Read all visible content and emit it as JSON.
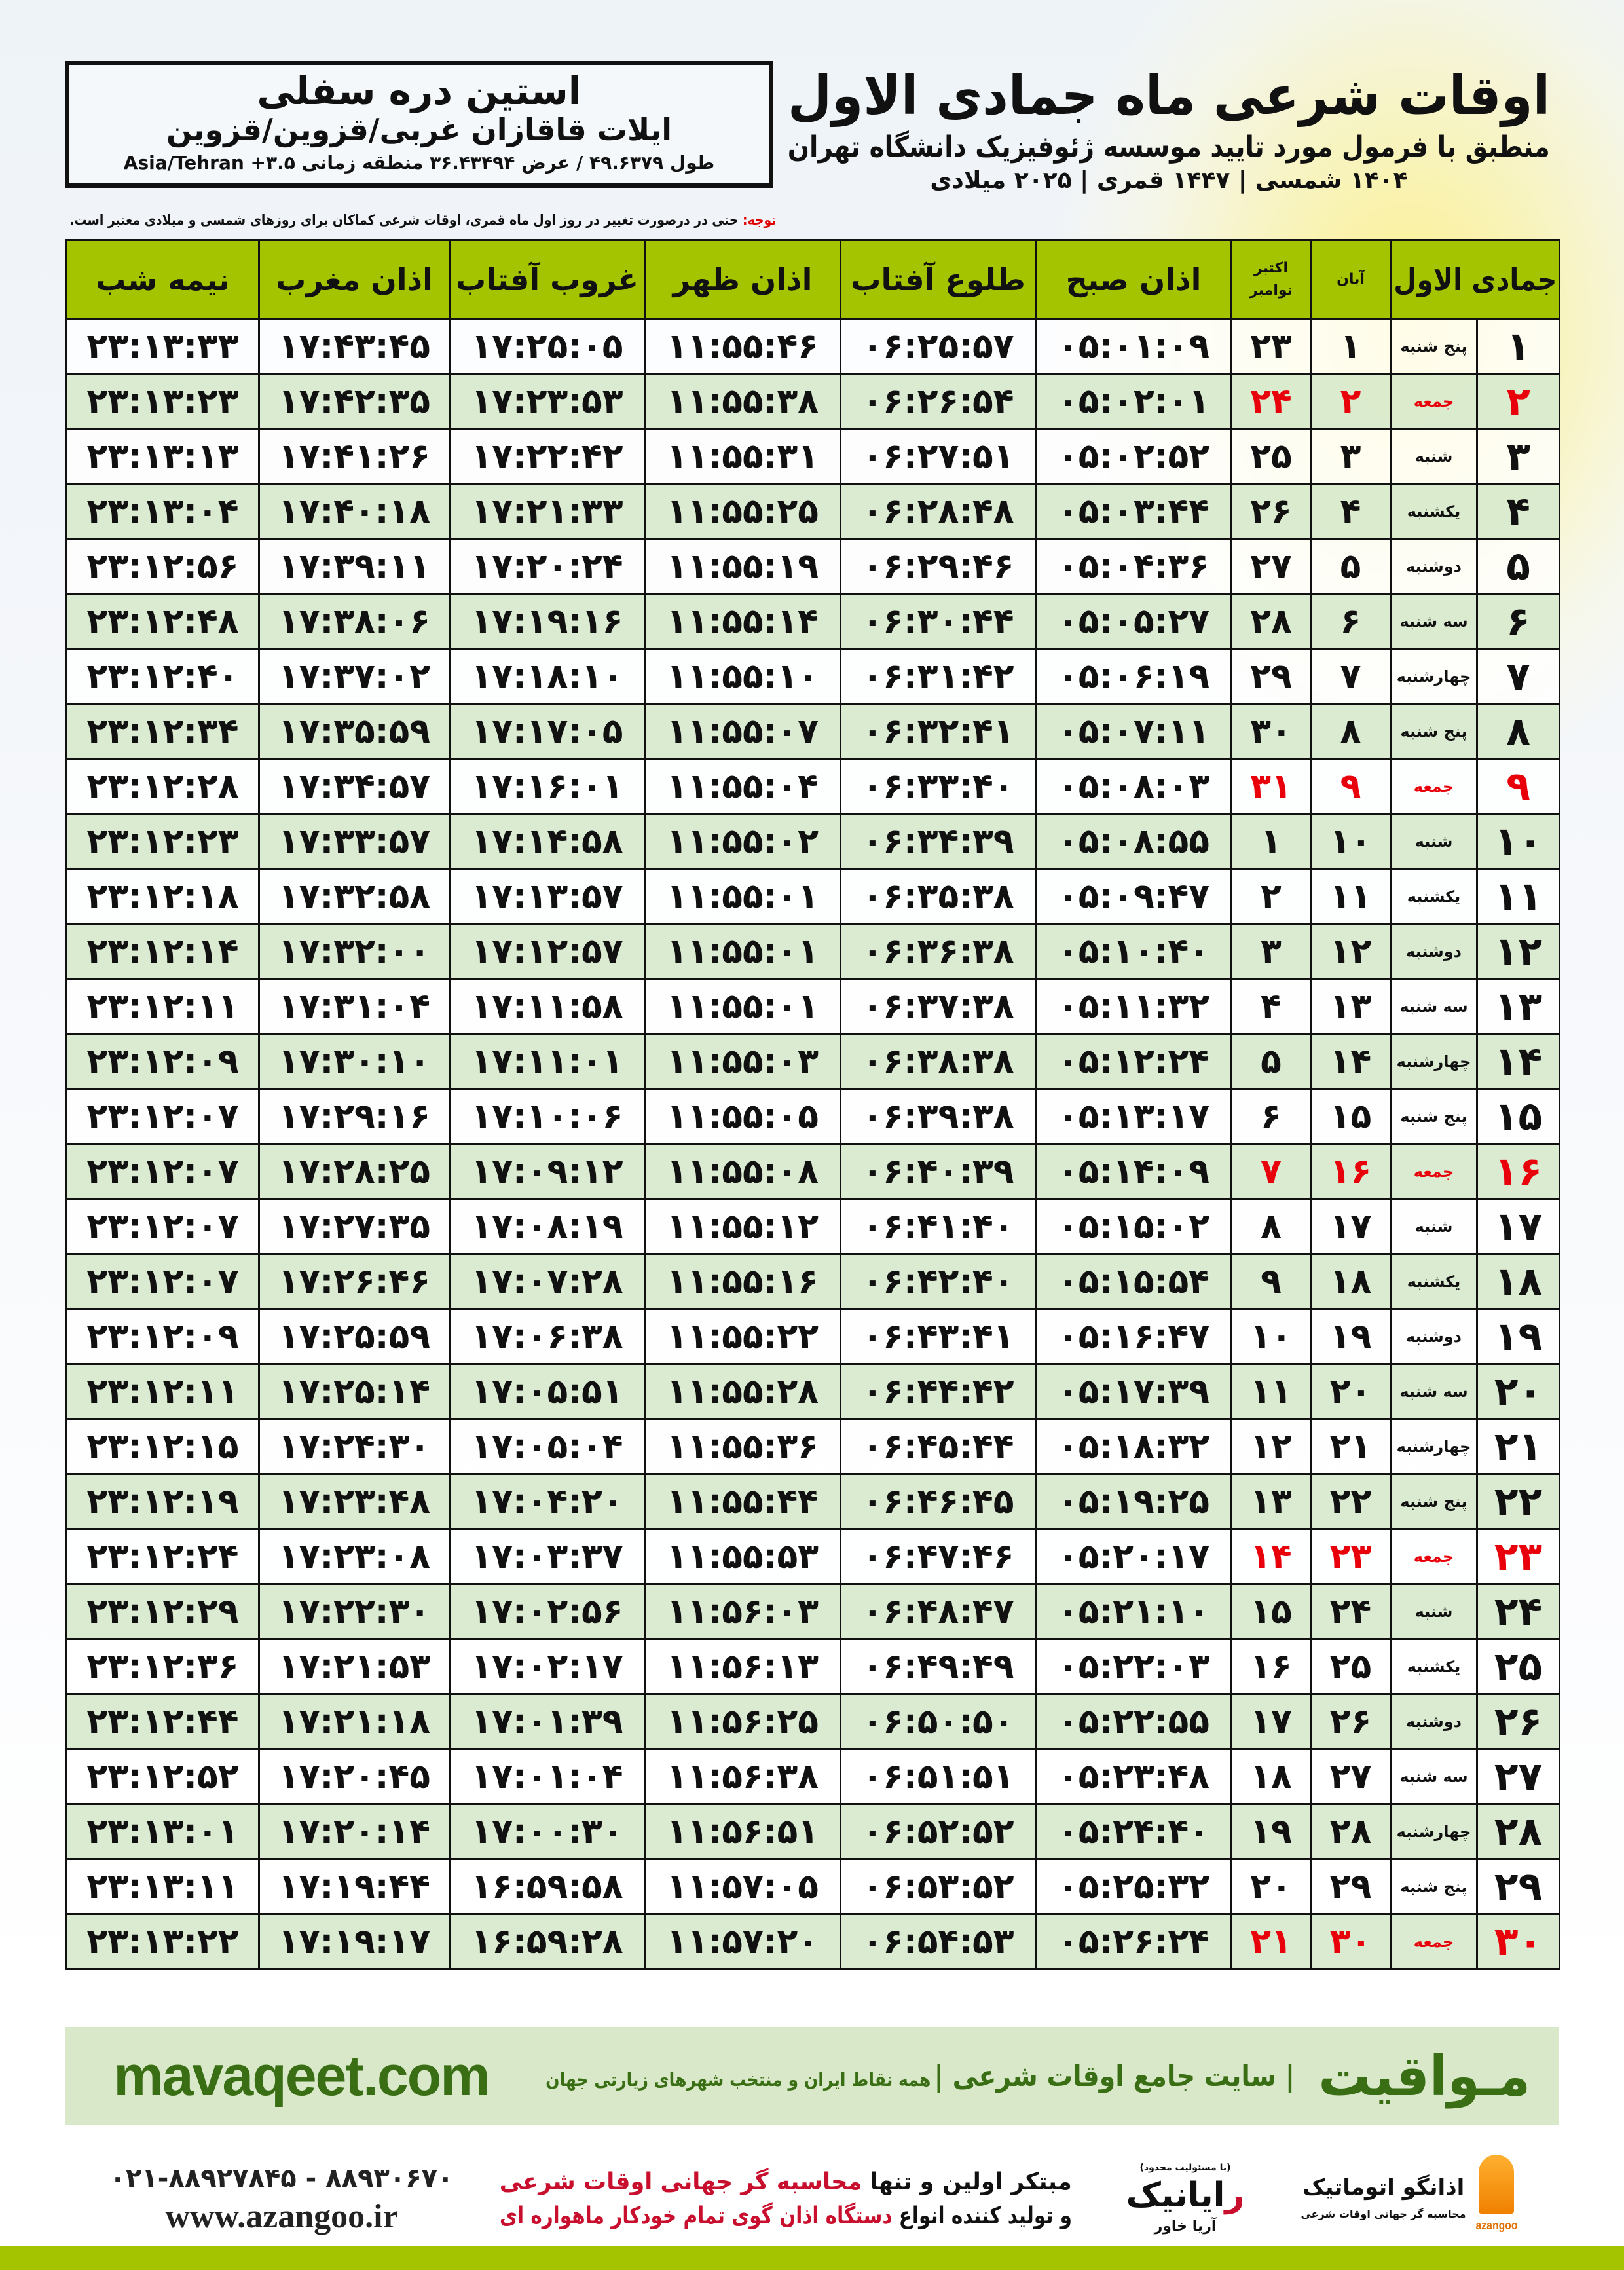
{
  "header": {
    "title": "اوقات شرعی ماه جمادی الاول",
    "subtitle": "منطبق با فرمول مورد تایید موسسه ژئوفیزیک دانشگاه تهران",
    "years": "۱۴۰۴ شمسی | ۱۴۴۷ قمری | ۲۰۲۵ میلادی"
  },
  "location": {
    "city": "استین دره سفلی",
    "region": "ایلات قاقازان غربی/قزوین/قزوین",
    "coords": "طول ۴۹.۶۳۷۹ / عرض ۳۶.۴۳۴۹۴ منطقه زمانی ۳.۵+ Asia/Tehran"
  },
  "note": {
    "label": "توجه:",
    "text": " حتی در درصورت تغییر در روز اول ماه قمری، اوقات شرعی کماکان برای روزهای شمسی و میلادی معتبر است."
  },
  "table": {
    "headers": {
      "day": "جمادی الاول",
      "aban": "آبان",
      "greg_top": "اکتبر",
      "greg_bottom": "نوامبر",
      "fajr": "اذان صبح",
      "sunrise": "طلوع آفتاب",
      "dhuhr": "اذان ظهر",
      "sunset": "غروب آفتاب",
      "maghrib": "اذان مغرب",
      "midnight": "نیمه شب"
    },
    "holiday_color": "#e8000b",
    "header_color": "#a5c400",
    "alt_row_color": "#d9eacf",
    "rows": [
      {
        "day": "۱",
        "weekday": "پنج شنبه",
        "aban": "۱",
        "greg": "۲۳",
        "fajr": "۰۵:۰۱:۰۹",
        "sunrise": "۰۶:۲۵:۵۷",
        "dhuhr": "۱۱:۵۵:۴۶",
        "sunset": "۱۷:۲۵:۰۵",
        "maghrib": "۱۷:۴۳:۴۵",
        "midnight": "۲۳:۱۳:۳۳",
        "holiday": false
      },
      {
        "day": "۲",
        "weekday": "جمعه",
        "aban": "۲",
        "greg": "۲۴",
        "fajr": "۰۵:۰۲:۰۱",
        "sunrise": "۰۶:۲۶:۵۴",
        "dhuhr": "۱۱:۵۵:۳۸",
        "sunset": "۱۷:۲۳:۵۳",
        "maghrib": "۱۷:۴۲:۳۵",
        "midnight": "۲۳:۱۳:۲۳",
        "holiday": true
      },
      {
        "day": "۳",
        "weekday": "شنبه",
        "aban": "۳",
        "greg": "۲۵",
        "fajr": "۰۵:۰۲:۵۲",
        "sunrise": "۰۶:۲۷:۵۱",
        "dhuhr": "۱۱:۵۵:۳۱",
        "sunset": "۱۷:۲۲:۴۲",
        "maghrib": "۱۷:۴۱:۲۶",
        "midnight": "۲۳:۱۳:۱۳",
        "holiday": false
      },
      {
        "day": "۴",
        "weekday": "یکشنبه",
        "aban": "۴",
        "greg": "۲۶",
        "fajr": "۰۵:۰۳:۴۴",
        "sunrise": "۰۶:۲۸:۴۸",
        "dhuhr": "۱۱:۵۵:۲۵",
        "sunset": "۱۷:۲۱:۳۳",
        "maghrib": "۱۷:۴۰:۱۸",
        "midnight": "۲۳:۱۳:۰۴",
        "holiday": false
      },
      {
        "day": "۵",
        "weekday": "دوشنبه",
        "aban": "۵",
        "greg": "۲۷",
        "fajr": "۰۵:۰۴:۳۶",
        "sunrise": "۰۶:۲۹:۴۶",
        "dhuhr": "۱۱:۵۵:۱۹",
        "sunset": "۱۷:۲۰:۲۴",
        "maghrib": "۱۷:۳۹:۱۱",
        "midnight": "۲۳:۱۲:۵۶",
        "holiday": false
      },
      {
        "day": "۶",
        "weekday": "سه شنبه",
        "aban": "۶",
        "greg": "۲۸",
        "fajr": "۰۵:۰۵:۲۷",
        "sunrise": "۰۶:۳۰:۴۴",
        "dhuhr": "۱۱:۵۵:۱۴",
        "sunset": "۱۷:۱۹:۱۶",
        "maghrib": "۱۷:۳۸:۰۶",
        "midnight": "۲۳:۱۲:۴۸",
        "holiday": false
      },
      {
        "day": "۷",
        "weekday": "چهارشنبه",
        "aban": "۷",
        "greg": "۲۹",
        "fajr": "۰۵:۰۶:۱۹",
        "sunrise": "۰۶:۳۱:۴۲",
        "dhuhr": "۱۱:۵۵:۱۰",
        "sunset": "۱۷:۱۸:۱۰",
        "maghrib": "۱۷:۳۷:۰۲",
        "midnight": "۲۳:۱۲:۴۰",
        "holiday": false
      },
      {
        "day": "۸",
        "weekday": "پنج شنبه",
        "aban": "۸",
        "greg": "۳۰",
        "fajr": "۰۵:۰۷:۱۱",
        "sunrise": "۰۶:۳۲:۴۱",
        "dhuhr": "۱۱:۵۵:۰۷",
        "sunset": "۱۷:۱۷:۰۵",
        "maghrib": "۱۷:۳۵:۵۹",
        "midnight": "۲۳:۱۲:۳۴",
        "holiday": false
      },
      {
        "day": "۹",
        "weekday": "جمعه",
        "aban": "۹",
        "greg": "۳۱",
        "fajr": "۰۵:۰۸:۰۳",
        "sunrise": "۰۶:۳۳:۴۰",
        "dhuhr": "۱۱:۵۵:۰۴",
        "sunset": "۱۷:۱۶:۰۱",
        "maghrib": "۱۷:۳۴:۵۷",
        "midnight": "۲۳:۱۲:۲۸",
        "holiday": true
      },
      {
        "day": "۱۰",
        "weekday": "شنبه",
        "aban": "۱۰",
        "greg": "۱",
        "fajr": "۰۵:۰۸:۵۵",
        "sunrise": "۰۶:۳۴:۳۹",
        "dhuhr": "۱۱:۵۵:۰۲",
        "sunset": "۱۷:۱۴:۵۸",
        "maghrib": "۱۷:۳۳:۵۷",
        "midnight": "۲۳:۱۲:۲۳",
        "holiday": false
      },
      {
        "day": "۱۱",
        "weekday": "یکشنبه",
        "aban": "۱۱",
        "greg": "۲",
        "fajr": "۰۵:۰۹:۴۷",
        "sunrise": "۰۶:۳۵:۳۸",
        "dhuhr": "۱۱:۵۵:۰۱",
        "sunset": "۱۷:۱۳:۵۷",
        "maghrib": "۱۷:۳۲:۵۸",
        "midnight": "۲۳:۱۲:۱۸",
        "holiday": false
      },
      {
        "day": "۱۲",
        "weekday": "دوشنبه",
        "aban": "۱۲",
        "greg": "۳",
        "fajr": "۰۵:۱۰:۴۰",
        "sunrise": "۰۶:۳۶:۳۸",
        "dhuhr": "۱۱:۵۵:۰۱",
        "sunset": "۱۷:۱۲:۵۷",
        "maghrib": "۱۷:۳۲:۰۰",
        "midnight": "۲۳:۱۲:۱۴",
        "holiday": false
      },
      {
        "day": "۱۳",
        "weekday": "سه شنبه",
        "aban": "۱۳",
        "greg": "۴",
        "fajr": "۰۵:۱۱:۳۲",
        "sunrise": "۰۶:۳۷:۳۸",
        "dhuhr": "۱۱:۵۵:۰۱",
        "sunset": "۱۷:۱۱:۵۸",
        "maghrib": "۱۷:۳۱:۰۴",
        "midnight": "۲۳:۱۲:۱۱",
        "holiday": false
      },
      {
        "day": "۱۴",
        "weekday": "چهارشنبه",
        "aban": "۱۴",
        "greg": "۵",
        "fajr": "۰۵:۱۲:۲۴",
        "sunrise": "۰۶:۳۸:۳۸",
        "dhuhr": "۱۱:۵۵:۰۳",
        "sunset": "۱۷:۱۱:۰۱",
        "maghrib": "۱۷:۳۰:۱۰",
        "midnight": "۲۳:۱۲:۰۹",
        "holiday": false
      },
      {
        "day": "۱۵",
        "weekday": "پنج شنبه",
        "aban": "۱۵",
        "greg": "۶",
        "fajr": "۰۵:۱۳:۱۷",
        "sunrise": "۰۶:۳۹:۳۸",
        "dhuhr": "۱۱:۵۵:۰۵",
        "sunset": "۱۷:۱۰:۰۶",
        "maghrib": "۱۷:۲۹:۱۶",
        "midnight": "۲۳:۱۲:۰۷",
        "holiday": false
      },
      {
        "day": "۱۶",
        "weekday": "جمعه",
        "aban": "۱۶",
        "greg": "۷",
        "fajr": "۰۵:۱۴:۰۹",
        "sunrise": "۰۶:۴۰:۳۹",
        "dhuhr": "۱۱:۵۵:۰۸",
        "sunset": "۱۷:۰۹:۱۲",
        "maghrib": "۱۷:۲۸:۲۵",
        "midnight": "۲۳:۱۲:۰۷",
        "holiday": true
      },
      {
        "day": "۱۷",
        "weekday": "شنبه",
        "aban": "۱۷",
        "greg": "۸",
        "fajr": "۰۵:۱۵:۰۲",
        "sunrise": "۰۶:۴۱:۴۰",
        "dhuhr": "۱۱:۵۵:۱۲",
        "sunset": "۱۷:۰۸:۱۹",
        "maghrib": "۱۷:۲۷:۳۵",
        "midnight": "۲۳:۱۲:۰۷",
        "holiday": false
      },
      {
        "day": "۱۸",
        "weekday": "یکشنبه",
        "aban": "۱۸",
        "greg": "۹",
        "fajr": "۰۵:۱۵:۵۴",
        "sunrise": "۰۶:۴۲:۴۰",
        "dhuhr": "۱۱:۵۵:۱۶",
        "sunset": "۱۷:۰۷:۲۸",
        "maghrib": "۱۷:۲۶:۴۶",
        "midnight": "۲۳:۱۲:۰۷",
        "holiday": false
      },
      {
        "day": "۱۹",
        "weekday": "دوشنبه",
        "aban": "۱۹",
        "greg": "۱۰",
        "fajr": "۰۵:۱۶:۴۷",
        "sunrise": "۰۶:۴۳:۴۱",
        "dhuhr": "۱۱:۵۵:۲۲",
        "sunset": "۱۷:۰۶:۳۸",
        "maghrib": "۱۷:۲۵:۵۹",
        "midnight": "۲۳:۱۲:۰۹",
        "holiday": false
      },
      {
        "day": "۲۰",
        "weekday": "سه شنبه",
        "aban": "۲۰",
        "greg": "۱۱",
        "fajr": "۰۵:۱۷:۳۹",
        "sunrise": "۰۶:۴۴:۴۲",
        "dhuhr": "۱۱:۵۵:۲۸",
        "sunset": "۱۷:۰۵:۵۱",
        "maghrib": "۱۷:۲۵:۱۴",
        "midnight": "۲۳:۱۲:۱۱",
        "holiday": false
      },
      {
        "day": "۲۱",
        "weekday": "چهارشنبه",
        "aban": "۲۱",
        "greg": "۱۲",
        "fajr": "۰۵:۱۸:۳۲",
        "sunrise": "۰۶:۴۵:۴۴",
        "dhuhr": "۱۱:۵۵:۳۶",
        "sunset": "۱۷:۰۵:۰۴",
        "maghrib": "۱۷:۲۴:۳۰",
        "midnight": "۲۳:۱۲:۱۵",
        "holiday": false
      },
      {
        "day": "۲۲",
        "weekday": "پنج شنبه",
        "aban": "۲۲",
        "greg": "۱۳",
        "fajr": "۰۵:۱۹:۲۵",
        "sunrise": "۰۶:۴۶:۴۵",
        "dhuhr": "۱۱:۵۵:۴۴",
        "sunset": "۱۷:۰۴:۲۰",
        "maghrib": "۱۷:۲۳:۴۸",
        "midnight": "۲۳:۱۲:۱۹",
        "holiday": false
      },
      {
        "day": "۲۳",
        "weekday": "جمعه",
        "aban": "۲۳",
        "greg": "۱۴",
        "fajr": "۰۵:۲۰:۱۷",
        "sunrise": "۰۶:۴۷:۴۶",
        "dhuhr": "۱۱:۵۵:۵۳",
        "sunset": "۱۷:۰۳:۳۷",
        "maghrib": "۱۷:۲۳:۰۸",
        "midnight": "۲۳:۱۲:۲۴",
        "holiday": true
      },
      {
        "day": "۲۴",
        "weekday": "شنبه",
        "aban": "۲۴",
        "greg": "۱۵",
        "fajr": "۰۵:۲۱:۱۰",
        "sunrise": "۰۶:۴۸:۴۷",
        "dhuhr": "۱۱:۵۶:۰۳",
        "sunset": "۱۷:۰۲:۵۶",
        "maghrib": "۱۷:۲۲:۳۰",
        "midnight": "۲۳:۱۲:۲۹",
        "holiday": false
      },
      {
        "day": "۲۵",
        "weekday": "یکشنبه",
        "aban": "۲۵",
        "greg": "۱۶",
        "fajr": "۰۵:۲۲:۰۳",
        "sunrise": "۰۶:۴۹:۴۹",
        "dhuhr": "۱۱:۵۶:۱۳",
        "sunset": "۱۷:۰۲:۱۷",
        "maghrib": "۱۷:۲۱:۵۳",
        "midnight": "۲۳:۱۲:۳۶",
        "holiday": false
      },
      {
        "day": "۲۶",
        "weekday": "دوشنبه",
        "aban": "۲۶",
        "greg": "۱۷",
        "fajr": "۰۵:۲۲:۵۵",
        "sunrise": "۰۶:۵۰:۵۰",
        "dhuhr": "۱۱:۵۶:۲۵",
        "sunset": "۱۷:۰۱:۳۹",
        "maghrib": "۱۷:۲۱:۱۸",
        "midnight": "۲۳:۱۲:۴۴",
        "holiday": false
      },
      {
        "day": "۲۷",
        "weekday": "سه شنبه",
        "aban": "۲۷",
        "greg": "۱۸",
        "fajr": "۰۵:۲۳:۴۸",
        "sunrise": "۰۶:۵۱:۵۱",
        "dhuhr": "۱۱:۵۶:۳۸",
        "sunset": "۱۷:۰۱:۰۴",
        "maghrib": "۱۷:۲۰:۴۵",
        "midnight": "۲۳:۱۲:۵۲",
        "holiday": false
      },
      {
        "day": "۲۸",
        "weekday": "چهارشنبه",
        "aban": "۲۸",
        "greg": "۱۹",
        "fajr": "۰۵:۲۴:۴۰",
        "sunrise": "۰۶:۵۲:۵۲",
        "dhuhr": "۱۱:۵۶:۵۱",
        "sunset": "۱۷:۰۰:۳۰",
        "maghrib": "۱۷:۲۰:۱۴",
        "midnight": "۲۳:۱۳:۰۱",
        "holiday": false
      },
      {
        "day": "۲۹",
        "weekday": "پنج شنبه",
        "aban": "۲۹",
        "greg": "۲۰",
        "fajr": "۰۵:۲۵:۳۲",
        "sunrise": "۰۶:۵۳:۵۲",
        "dhuhr": "۱۱:۵۷:۰۵",
        "sunset": "۱۶:۵۹:۵۸",
        "maghrib": "۱۷:۱۹:۴۴",
        "midnight": "۲۳:۱۳:۱۱",
        "holiday": false
      },
      {
        "day": "۳۰",
        "weekday": "جمعه",
        "aban": "۳۰",
        "greg": "۲۱",
        "fajr": "۰۵:۲۶:۲۴",
        "sunrise": "۰۶:۵۴:۵۳",
        "dhuhr": "۱۱:۵۷:۲۰",
        "sunset": "۱۶:۵۹:۲۸",
        "maghrib": "۱۷:۱۹:۱۷",
        "midnight": "۲۳:۱۳:۲۲",
        "holiday": true
      }
    ]
  },
  "banner": {
    "brand": "مـواقیت",
    "slogan": "| سایت جامع اوقات شرعی |",
    "slogan2": "همه نقاط ایران و منتخب شهرهای زیارتی جهان",
    "site": "mavaqeet.com",
    "color": "#3a6e14"
  },
  "footer": {
    "phone": "۰۲۱-۸۸۹۲۷۸۴۵ - ۸۸۹۳۰۶۷۰",
    "web": "www.azangoo.ir",
    "promo_line1_a": "مبتکر اولین و تنها ",
    "promo_line1_b": "محاسبه گر جهانی اوقات شرعی",
    "promo_line2_a": "و تولید کننده انواع ",
    "promo_line2_b": "دستگاه اذان گوی تمام خودکار ماهواره ای",
    "rayanik_small": "(با مسئولیت محدود)",
    "rayanik_name_a": "ر",
    "rayanik_name_b": "ایانیک",
    "rayanik_sub": "آریا خاور",
    "azangoo_name": "اذانگو اتوماتیک",
    "azangoo_tag": "محاسبه گر جهانی اوقات شرعی",
    "azangoo_en": "azangoo"
  }
}
